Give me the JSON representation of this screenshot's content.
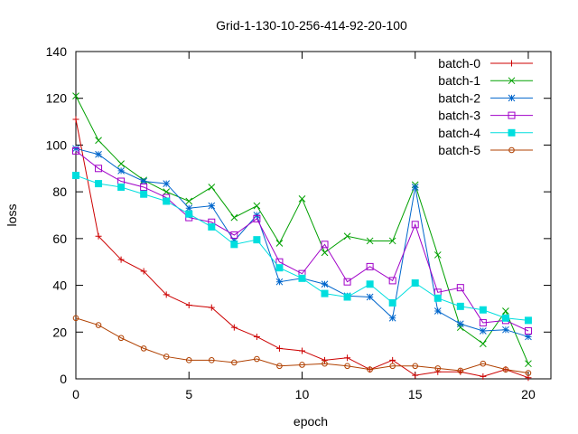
{
  "chart_data": {
    "type": "line",
    "title": "Grid-1-130-10-256-414-92-20-100",
    "xlabel": "epoch",
    "ylabel": "loss",
    "xlim": [
      0,
      21
    ],
    "ylim": [
      0,
      140
    ],
    "xticks": [
      0,
      5,
      10,
      15,
      20
    ],
    "yticks": [
      0,
      20,
      40,
      60,
      80,
      100,
      120,
      140
    ],
    "grid": false,
    "legend_position": "top-right",
    "x": [
      0,
      1,
      2,
      3,
      4,
      5,
      6,
      7,
      8,
      9,
      10,
      11,
      12,
      13,
      14,
      15,
      16,
      17,
      18,
      19,
      20
    ],
    "series": [
      {
        "name": "batch-0",
        "color": "#cc0000",
        "marker": "plus",
        "values": [
          111,
          61,
          51,
          46,
          36,
          31.5,
          30.5,
          22,
          18,
          13,
          12,
          8,
          9,
          4,
          8,
          1.5,
          3,
          3,
          1,
          4,
          0.5
        ]
      },
      {
        "name": "batch-1",
        "color": "#00a000",
        "marker": "cross",
        "values": [
          121,
          102,
          92,
          85,
          80,
          76,
          82,
          69,
          74,
          58,
          77,
          54,
          61,
          59,
          59,
          83,
          53,
          22,
          15,
          29,
          6.5
        ]
      },
      {
        "name": "batch-2",
        "color": "#0066cc",
        "marker": "star",
        "values": [
          98.5,
          96,
          89,
          84.5,
          83.5,
          73,
          74,
          59,
          70,
          41.5,
          43,
          40.5,
          35.5,
          35,
          26,
          82,
          29,
          23.5,
          20.5,
          21,
          18
        ]
      },
      {
        "name": "batch-3",
        "color": "#a000c8",
        "marker": "square",
        "values": [
          97.5,
          90,
          84.5,
          82,
          77.5,
          69,
          67,
          61.5,
          68.5,
          50,
          45,
          57.5,
          41.5,
          48,
          42,
          66,
          37,
          39,
          24,
          25,
          20.5
        ]
      },
      {
        "name": "batch-4",
        "color": "#00dede",
        "marker": "filled-square",
        "values": [
          87,
          83.5,
          82,
          79,
          76,
          70.5,
          65,
          57.5,
          59.5,
          47.5,
          43,
          36.5,
          35,
          40.5,
          32.5,
          41,
          34.5,
          31,
          29.5,
          26,
          25
        ]
      },
      {
        "name": "batch-5",
        "color": "#b04000",
        "marker": "circle",
        "values": [
          26,
          23,
          17.5,
          13,
          9.5,
          8,
          8,
          7,
          8.5,
          5.5,
          6,
          6.5,
          5.5,
          4,
          5.5,
          5.5,
          4.5,
          3.5,
          6.5,
          4,
          2.5
        ]
      }
    ]
  }
}
